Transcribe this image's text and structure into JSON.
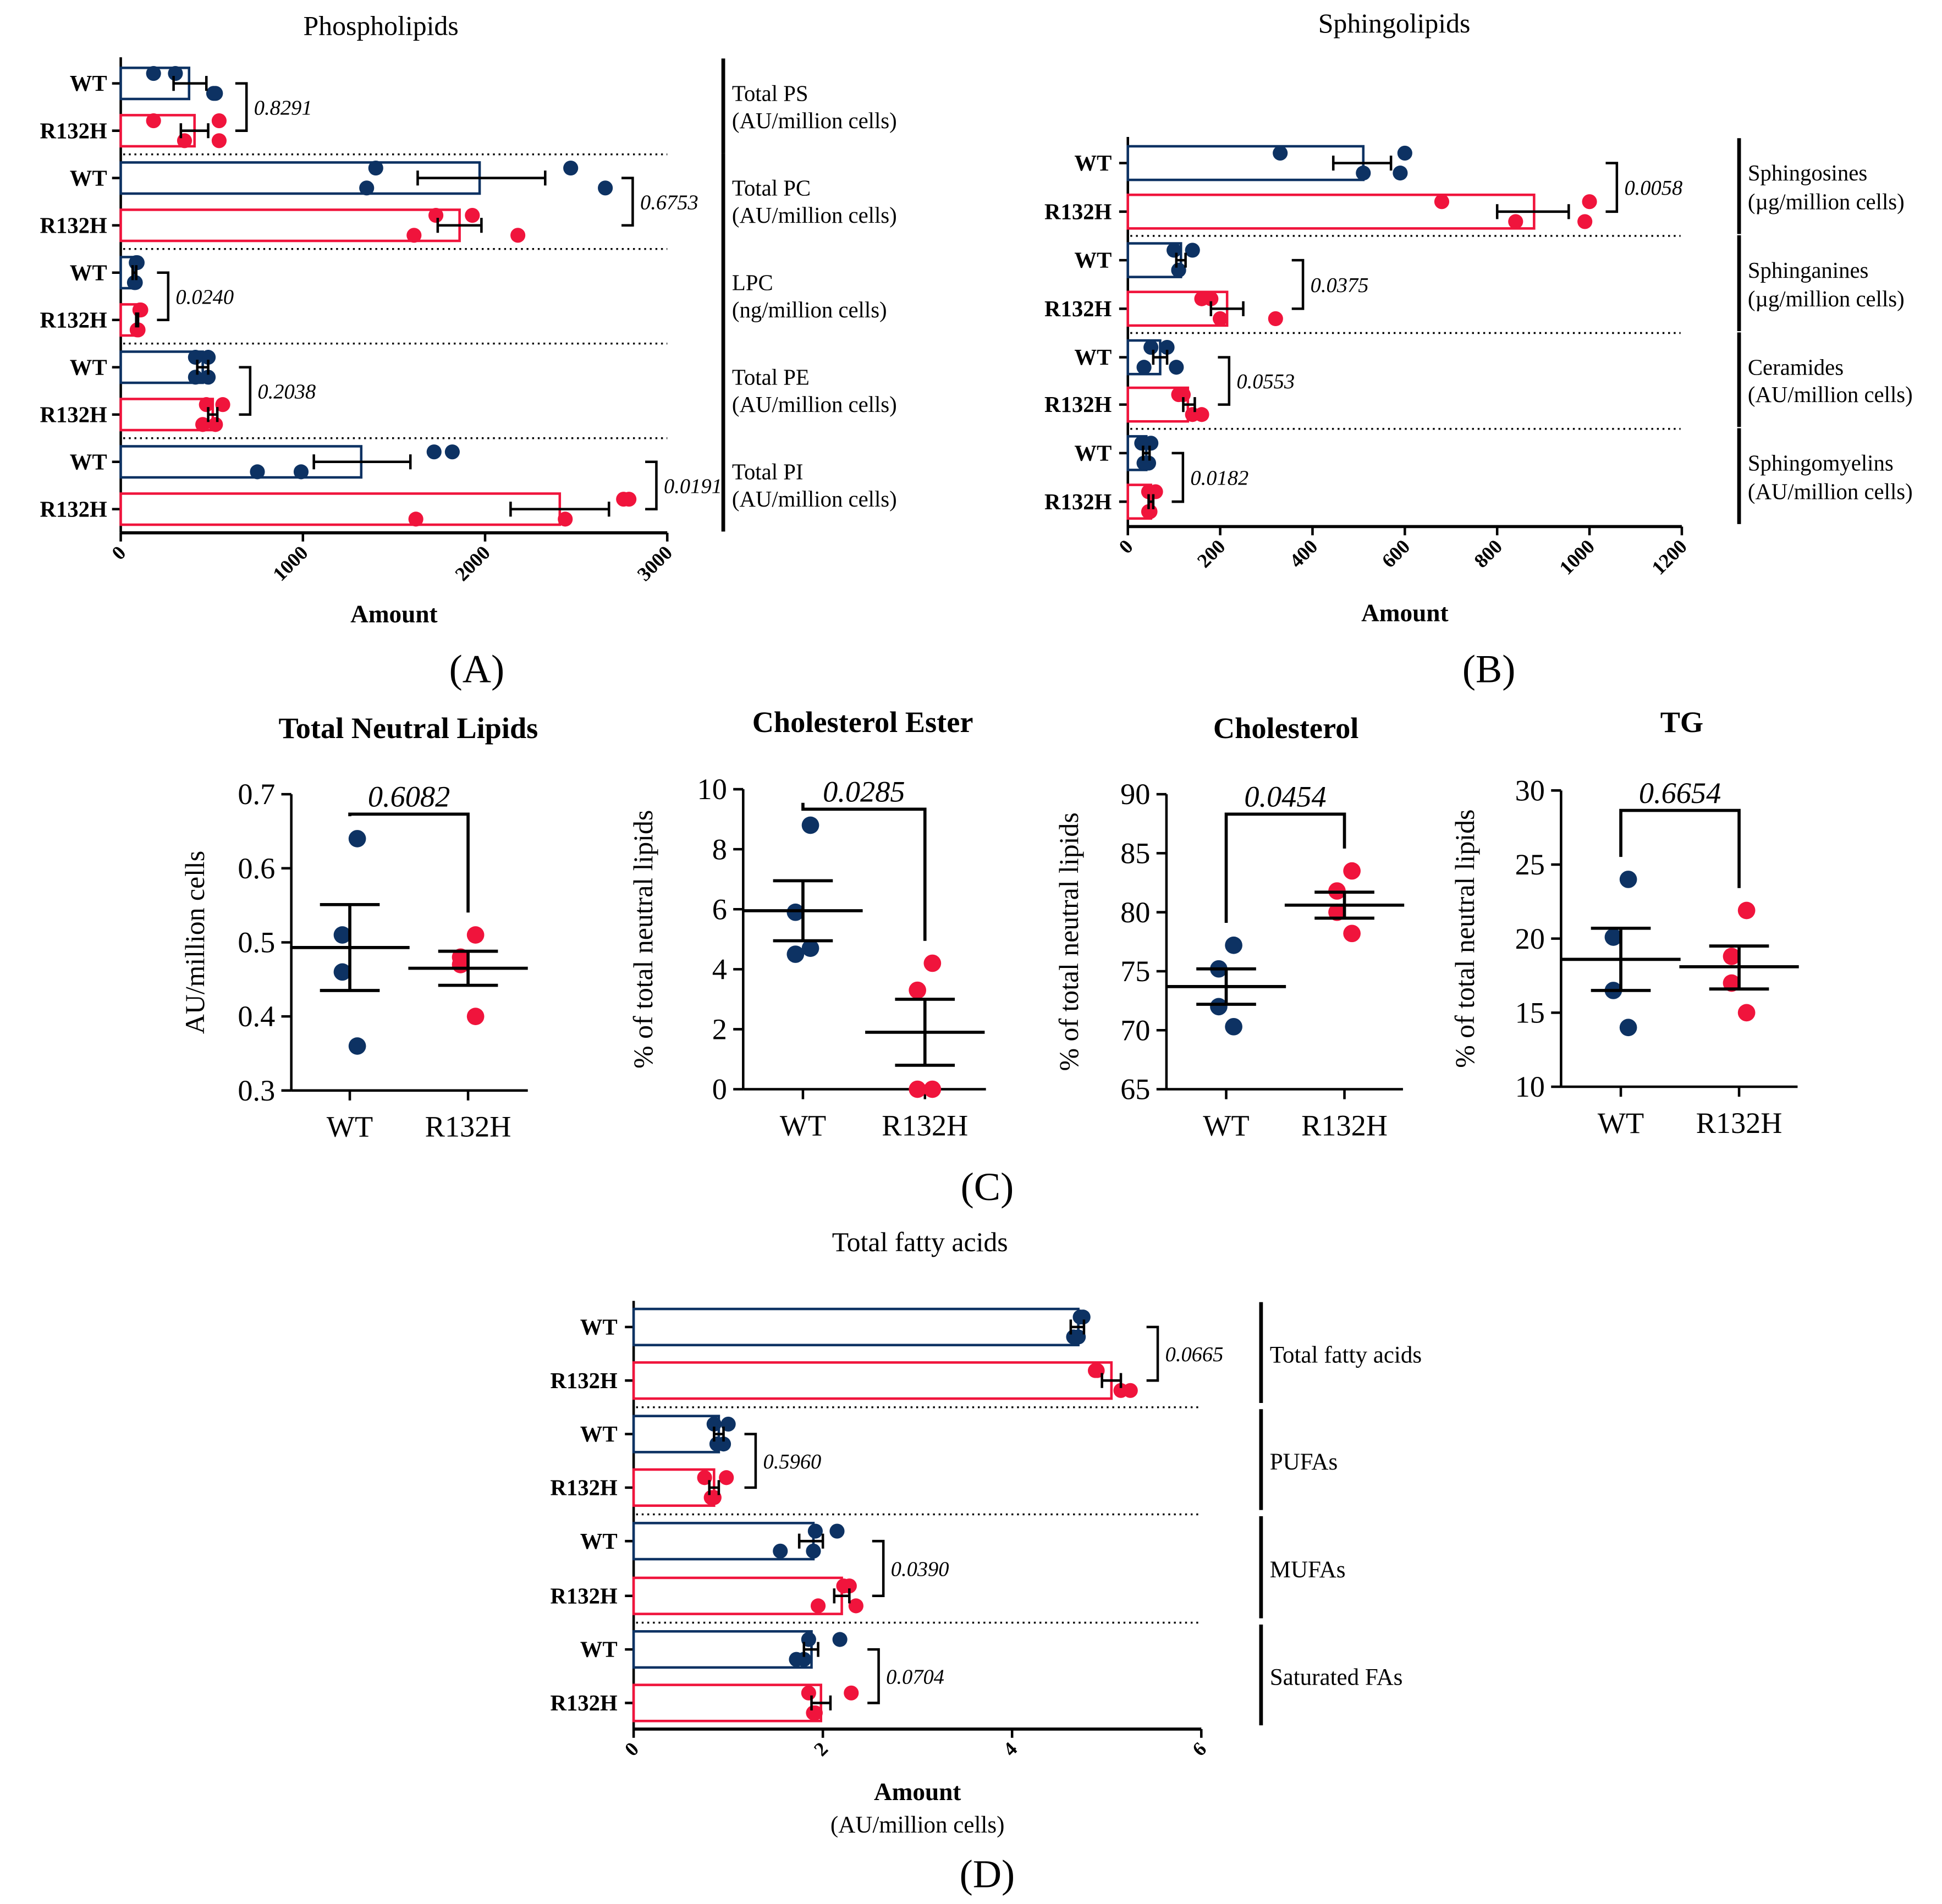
{
  "colors": {
    "wt": "#0d3263",
    "r132h": "#f0143c",
    "axis": "#000000"
  },
  "panel_letters": [
    "(A)",
    "(B)",
    "(C)",
    "(D)"
  ],
  "chart_data": [
    {
      "type": "bar",
      "orientation": "horizontal",
      "title": "Phospholipids",
      "xlabel": "Amount",
      "xlabel2": "",
      "xlim": [
        0,
        3000
      ],
      "xticks": [
        "0",
        "1000",
        "2000",
        "3000"
      ],
      "groups": [
        {
          "label": "Total PS",
          "unit": "(AU/million cells)",
          "p": "0.8291",
          "series": [
            {
              "name": "WT",
              "mean": 375,
              "sem": [
                290,
                470
              ],
              "points": [
                300,
                510,
                180,
                520
              ]
            },
            {
              "name": "R132H",
              "mean": 405,
              "sem": [
                330,
                480
              ],
              "points": [
                180,
                350,
                540,
                540
              ]
            }
          ]
        },
        {
          "label": "Total PC",
          "unit": "(AU/million cells)",
          "p": "0.6753",
          "series": [
            {
              "name": "WT",
              "mean": 1970,
              "sem": [
                1630,
                2330
              ],
              "points": [
                1400,
                1350,
                2470,
                2660
              ]
            },
            {
              "name": "R132H",
              "mean": 1860,
              "sem": [
                1740,
                1980
              ],
              "points": [
                1730,
                1610,
                1930,
                2180
              ]
            }
          ]
        },
        {
          "label": "LPC",
          "unit": "(ng/million cells)",
          "p": "0.0240",
          "series": [
            {
              "name": "WT",
              "mean": 75,
              "sem": [
                65,
                85
              ],
              "points": [
                85,
                75,
                90,
                80
              ]
            },
            {
              "name": "R132H",
              "mean": 90,
              "sem": [
                85,
                95
              ],
              "points": [
                105,
                95,
                110,
                90
              ]
            }
          ]
        },
        {
          "label": "Total PE",
          "unit": "(AU/million cells)",
          "p": "0.2038",
          "series": [
            {
              "name": "WT",
              "mean": 450,
              "sem": [
                420,
                480
              ],
              "points": [
                480,
                410,
                410,
                480
              ]
            },
            {
              "name": "R132H",
              "mean": 505,
              "sem": [
                480,
                530
              ],
              "points": [
                470,
                450,
                560,
                520
              ]
            }
          ]
        },
        {
          "label": "Total PI",
          "unit": "(AU/million cells)",
          "p": "0.0191",
          "series": [
            {
              "name": "WT",
              "mean": 1320,
              "sem": [
                1060,
                1590
              ],
              "points": [
                1820,
                750,
                1720,
                990
              ]
            },
            {
              "name": "R132H",
              "mean": 2410,
              "sem": [
                2140,
                2680
              ],
              "points": [
                2790,
                1620,
                2760,
                2440
              ]
            }
          ]
        }
      ]
    },
    {
      "type": "bar",
      "orientation": "horizontal",
      "title": "Sphingolipids",
      "xlabel": "Amount",
      "xlabel2": "",
      "xlim": [
        0,
        1200
      ],
      "xticks": [
        "0",
        "200",
        "400",
        "600",
        "800",
        "1000",
        "1200"
      ],
      "groups": [
        {
          "label": "Sphingosines",
          "unit": "(µg/million cells)",
          "p": "0.0058",
          "series": [
            {
              "name": "WT",
              "mean": 510,
              "sem": [
                445,
                570
              ],
              "points": [
                600,
                590,
                330,
                510
              ]
            },
            {
              "name": "R132H",
              "mean": 880,
              "sem": [
                800,
                955
              ],
              "points": [
                1000,
                990,
                680,
                840
              ]
            }
          ]
        },
        {
          "label": "Sphinganines",
          "unit": "(µg/million cells)",
          "p": "0.0375",
          "series": [
            {
              "name": "WT",
              "mean": 115,
              "sem": [
                105,
                125
              ],
              "points": [
                140,
                110,
                100,
                110
              ]
            },
            {
              "name": "R132H",
              "mean": 215,
              "sem": [
                180,
                250
              ],
              "points": [
                180,
                200,
                160,
                320
              ]
            }
          ]
        },
        {
          "label": "Ceramides",
          "unit": "(AU/million cells)",
          "p": "0.0553",
          "series": [
            {
              "name": "WT",
              "mean": 70,
              "sem": [
                55,
                85
              ],
              "points": [
                85,
                35,
                50,
                105
              ]
            },
            {
              "name": "R132H",
              "mean": 130,
              "sem": [
                120,
                145
              ],
              "points": [
                120,
                140,
                110,
                160
              ]
            }
          ]
        },
        {
          "label": "Sphingomyelins",
          "unit": "(AU/million cells)",
          "p": "0.0182",
          "series": [
            {
              "name": "WT",
              "mean": 40,
              "sem": [
                33,
                47
              ],
              "points": [
                50,
                45,
                30,
                35
              ]
            },
            {
              "name": "R132H",
              "mean": 50,
              "sem": [
                45,
                55
              ],
              "points": [
                60,
                48,
                45,
                45
              ]
            }
          ]
        }
      ]
    },
    {
      "type": "scatter",
      "title": "Total Neutral Lipids",
      "ylabel": "AU/million cells",
      "ylim": [
        0.3,
        0.7
      ],
      "yticks": [
        "0.3",
        "0.4",
        "0.5",
        "0.6",
        "0.7"
      ],
      "p": "0.6082",
      "series": [
        {
          "name": "WT",
          "mean": 0.493,
          "sem": [
            0.435,
            0.551
          ],
          "points": [
            0.64,
            0.51,
            0.46,
            0.36
          ]
        },
        {
          "name": "R132H",
          "mean": 0.465,
          "sem": [
            0.442,
            0.488
          ],
          "points": [
            0.51,
            0.48,
            0.47,
            0.4
          ]
        }
      ]
    },
    {
      "type": "scatter",
      "title": "Cholesterol Ester",
      "ylabel": "% of total neutral lipids",
      "ylim": [
        0,
        10
      ],
      "yticks": [
        "0",
        "2",
        "4",
        "6",
        "8",
        "10"
      ],
      "p": "0.0285",
      "series": [
        {
          "name": "WT",
          "mean": 5.95,
          "sem": [
            4.95,
            6.95
          ],
          "points": [
            8.8,
            5.9,
            4.5,
            4.7
          ]
        },
        {
          "name": "R132H",
          "mean": 1.9,
          "sem": [
            0.8,
            3.0
          ],
          "points": [
            4.2,
            3.3,
            0,
            0
          ]
        }
      ]
    },
    {
      "type": "scatter",
      "title": "Cholesterol",
      "ylabel": "% of total neutral lipids",
      "ylim": [
        65,
        90
      ],
      "yticks": [
        "65",
        "70",
        "75",
        "80",
        "85",
        "90"
      ],
      "p": "0.0454",
      "series": [
        {
          "name": "WT",
          "mean": 73.7,
          "sem": [
            72.2,
            75.2
          ],
          "points": [
            77.2,
            75.2,
            72.0,
            70.3
          ]
        },
        {
          "name": "R132H",
          "mean": 80.6,
          "sem": [
            79.5,
            81.7
          ],
          "points": [
            83.5,
            81.8,
            80.0,
            78.2
          ]
        }
      ]
    },
    {
      "type": "scatter",
      "title": "TG",
      "ylabel": "% of total neutral lipids",
      "ylim": [
        10,
        30
      ],
      "yticks": [
        "10",
        "15",
        "20",
        "25",
        "30"
      ],
      "p": "0.6654",
      "series": [
        {
          "name": "WT",
          "mean": 18.6,
          "sem": [
            16.5,
            20.7
          ],
          "points": [
            24.0,
            20.1,
            16.5,
            14.0
          ]
        },
        {
          "name": "R132H",
          "mean": 18.1,
          "sem": [
            16.6,
            19.5
          ],
          "points": [
            21.9,
            18.8,
            17.0,
            15.0
          ]
        }
      ]
    },
    {
      "type": "bar",
      "orientation": "horizontal",
      "title": "Total fatty acids",
      "xlabel": "Amount",
      "xlabel2": "(AU/million cells)",
      "xlim": [
        0,
        6
      ],
      "xticks": [
        "0",
        "2",
        "4",
        "6"
      ],
      "groups": [
        {
          "label": "Total fatty acids",
          "unit": "",
          "p": "0.0665",
          "series": [
            {
              "name": "WT",
              "mean": 4.7,
              "sem": [
                4.62,
                4.76
              ],
              "points": [
                4.75,
                4.65,
                4.72,
                4.7
              ]
            },
            {
              "name": "R132H",
              "mean": 5.05,
              "sem": [
                4.95,
                5.15
              ],
              "points": [
                4.9,
                5.15,
                4.88,
                5.25
              ]
            }
          ]
        },
        {
          "label": "PUFAs",
          "unit": "",
          "p": "0.5960",
          "series": [
            {
              "name": "WT",
              "mean": 0.9,
              "sem": [
                0.85,
                0.95
              ],
              "points": [
                1.0,
                0.95,
                0.85,
                0.88
              ]
            },
            {
              "name": "R132H",
              "mean": 0.85,
              "sem": [
                0.8,
                0.9
              ],
              "points": [
                0.98,
                0.85,
                0.75,
                0.82
              ]
            }
          ]
        },
        {
          "label": "MUFAs",
          "unit": "",
          "p": "0.0390",
          "series": [
            {
              "name": "WT",
              "mean": 1.9,
              "sem": [
                1.75,
                2.0
              ],
              "points": [
                2.15,
                1.55,
                1.92,
                1.9
              ]
            },
            {
              "name": "R132H",
              "mean": 2.2,
              "sem": [
                2.12,
                2.28
              ],
              "points": [
                2.28,
                1.95,
                2.22,
                2.35
              ]
            }
          ]
        },
        {
          "label": "Saturated FAs",
          "unit": "",
          "p": "0.0704",
          "series": [
            {
              "name": "WT",
              "mean": 1.88,
              "sem": [
                1.8,
                1.95
              ],
              "points": [
                2.18,
                1.72,
                1.85,
                1.8
              ]
            },
            {
              "name": "R132H",
              "mean": 1.98,
              "sem": [
                1.88,
                2.08
              ],
              "points": [
                1.85,
                1.92,
                2.3,
                1.9
              ]
            }
          ]
        }
      ]
    }
  ]
}
